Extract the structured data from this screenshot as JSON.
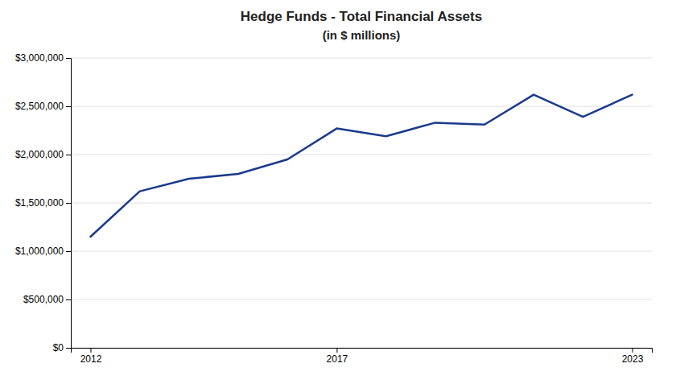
{
  "chart_data": {
    "type": "line",
    "title": "Hedge Funds - Total Financial Assets",
    "subtitle": "(in $ millions)",
    "x": [
      2012,
      2013,
      2014,
      2015,
      2016,
      2017,
      2018,
      2019,
      2020,
      2021,
      2022,
      2023
    ],
    "values": [
      1150000,
      1620000,
      1750000,
      1800000,
      1950000,
      2270000,
      2190000,
      2330000,
      2310000,
      2620000,
      2390000,
      2620000
    ],
    "color": "#1a3a8c",
    "xlim": [
      2011.6,
      2023.4
    ],
    "xticks": [
      2012,
      2017,
      2023
    ],
    "ylim": [
      0,
      3000000
    ],
    "yticks": [
      {
        "value": 0,
        "label": "$0"
      },
      {
        "value": 500000,
        "label": "$500,000"
      },
      {
        "value": 1000000,
        "label": "$1,000,000"
      },
      {
        "value": 1500000,
        "label": "$1,500,000"
      },
      {
        "value": 2000000,
        "label": "$2,000,000"
      },
      {
        "value": 2500000,
        "label": "$2,500,000"
      },
      {
        "value": 3000000,
        "label": "$3,000,000"
      }
    ],
    "grid": true
  }
}
